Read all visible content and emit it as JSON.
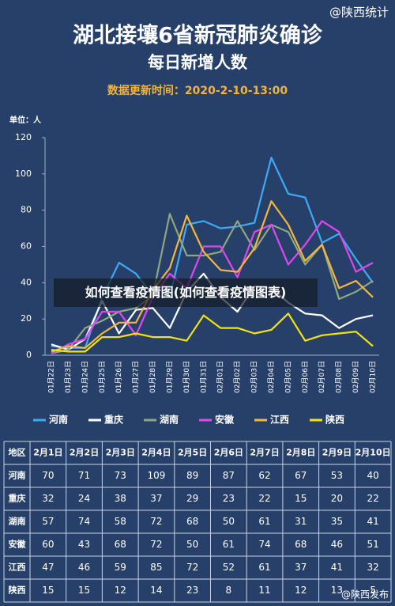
{
  "chart_data": {
    "type": "line",
    "title": "湖北接壤6省新冠肺炎确诊",
    "subtitle": "每日新增人数",
    "update_time": "数据更新时间：2020-2-10-13:00",
    "unit_label": "单位：人",
    "categories": [
      "01月22日",
      "01月23日",
      "01月24日",
      "01月25日",
      "01月26日",
      "01月27日",
      "01月28日",
      "01月29日",
      "01月30日",
      "01月31日",
      "02月01日",
      "02月02日",
      "02月03日",
      "02月04日",
      "02月05日",
      "02月06日",
      "02月07日",
      "02月08日",
      "02月09日",
      "02月10日"
    ],
    "series": [
      {
        "name": "河南",
        "color": "#3fa9f5",
        "values": [
          5,
          4,
          4,
          32,
          51,
          45,
          33,
          32,
          72,
          74,
          70,
          71,
          73,
          109,
          89,
          87,
          62,
          67,
          53,
          40
        ]
      },
      {
        "name": "重庆",
        "color": "#ffffff",
        "values": [
          6,
          3,
          9,
          30,
          12,
          25,
          26,
          15,
          35,
          45,
          32,
          24,
          38,
          37,
          29,
          23,
          22,
          15,
          20,
          22
        ]
      },
      {
        "name": "湖南",
        "color": "#8fa67e",
        "values": [
          1,
          3,
          15,
          19,
          24,
          26,
          33,
          78,
          55,
          55,
          57,
          74,
          58,
          72,
          68,
          50,
          61,
          31,
          35,
          41
        ]
      },
      {
        "name": "安徽",
        "color": "#e046f0",
        "values": [
          1,
          6,
          9,
          24,
          24,
          11,
          32,
          45,
          37,
          60,
          60,
          43,
          68,
          72,
          50,
          61,
          74,
          68,
          46,
          51
        ]
      },
      {
        "name": "江西",
        "color": "#f4b63c",
        "values": [
          2,
          5,
          4,
          12,
          18,
          18,
          36,
          48,
          77,
          57,
          47,
          46,
          59,
          85,
          72,
          52,
          61,
          37,
          41,
          32
        ]
      },
      {
        "name": "陕西",
        "color": "#f3e40c",
        "values": [
          3,
          2,
          2,
          10,
          10,
          12,
          10,
          10,
          8,
          22,
          15,
          15,
          12,
          14,
          23,
          8,
          11,
          12,
          13,
          5
        ]
      }
    ],
    "ylim": [
      0,
      120
    ],
    "yticks": [
      0,
      20,
      40,
      60,
      80,
      100,
      120
    ],
    "grid": false,
    "table": {
      "header": [
        "地区",
        "2月1日",
        "2月2日",
        "2月3日",
        "2月4日",
        "2月5日",
        "2月6日",
        "2月7日",
        "2月8日",
        "2月9日",
        "2月10日"
      ]
    }
  },
  "overlay_text": "如何查看疫情图(如何查看疫情图表)",
  "watermarks": [
    "@陕西统计",
    "@陕西发布"
  ]
}
